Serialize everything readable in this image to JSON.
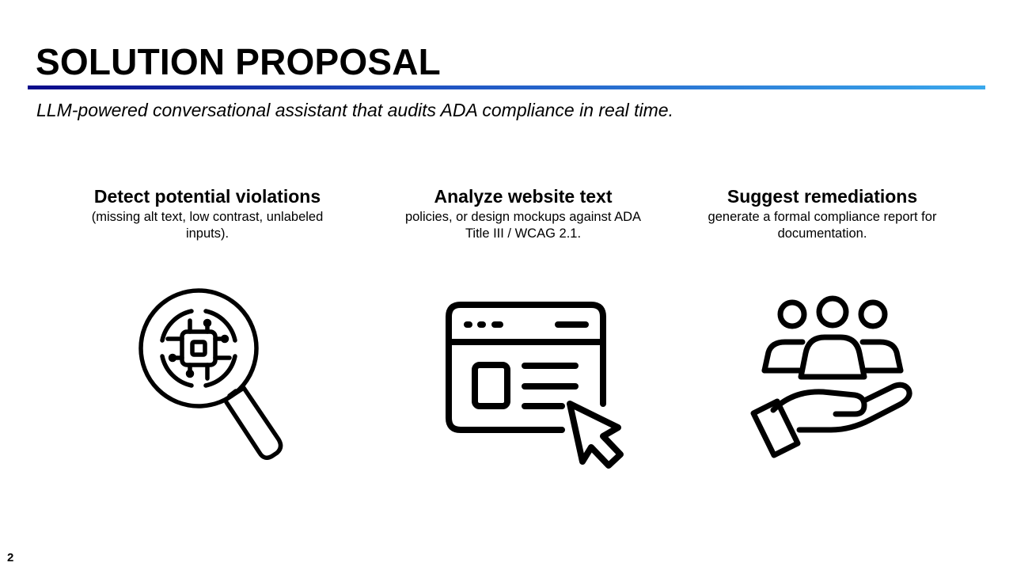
{
  "slide": {
    "title": "SOLUTION PROPOSAL",
    "subtitle": "LLM-powered conversational assistant that audits ADA compliance in real time.",
    "page_number": "2"
  },
  "columns": [
    {
      "heading": "Detect potential violations",
      "description": "(missing alt text, low contrast, unlabeled inputs).",
      "icon": "magnifier-chip-icon"
    },
    {
      "heading": "Analyze website text",
      "description": "policies, or design mockups against ADA Title III / WCAG 2.1.",
      "icon": "browser-window-cursor-icon"
    },
    {
      "heading": "Suggest remediations",
      "description": "generate a formal compliance report for documentation.",
      "icon": "hand-holding-people-icon"
    }
  ],
  "colors": {
    "rule_start": "#0a0a8a",
    "rule_end": "#3aa8ec",
    "text": "#000000"
  }
}
